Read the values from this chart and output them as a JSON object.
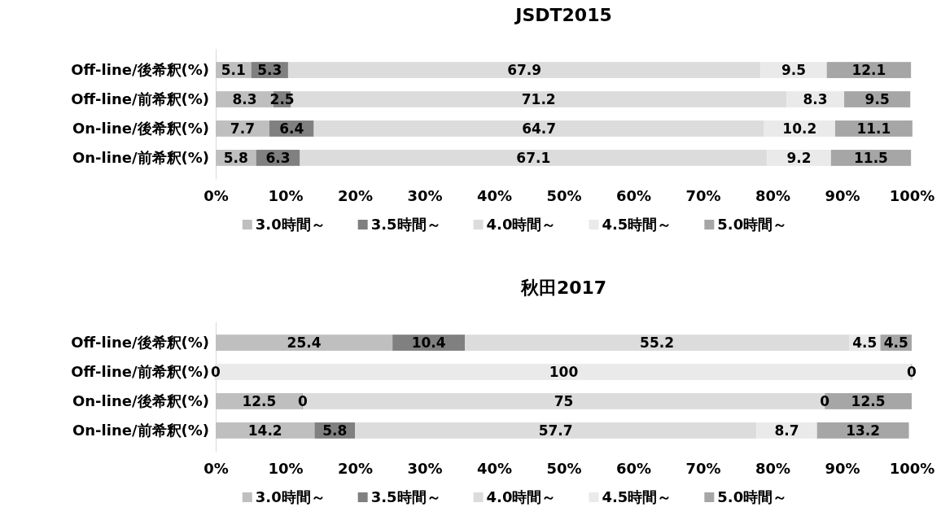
{
  "chart_data": [
    {
      "type": "bar",
      "title": "JSDT2015",
      "orientation": "horizontal",
      "stacked": true,
      "data_labels": true,
      "legend": "bottom",
      "grid": false,
      "categories": [
        "Off-line/後希釈(%)",
        "Off-line/前希釈(%)",
        "On-line/後希釈(%)",
        "On-line/前希釈(%)"
      ],
      "xlim": [
        0,
        100
      ],
      "xticks": [
        {
          "value": 0,
          "label": "0%"
        },
        {
          "value": 10,
          "label": "10%"
        },
        {
          "value": 20,
          "label": "20%"
        },
        {
          "value": 30,
          "label": "30%"
        },
        {
          "value": 40,
          "label": "40%"
        },
        {
          "value": 50,
          "label": "50%"
        },
        {
          "value": 60,
          "label": "60%"
        },
        {
          "value": 70,
          "label": "70%"
        },
        {
          "value": 80,
          "label": "80%"
        },
        {
          "value": 90,
          "label": "90%"
        },
        {
          "value": 100,
          "label": "100%"
        }
      ],
      "series": [
        {
          "name": "3.0時間～",
          "color": "#bfbfbf",
          "values": [
            5.1,
            8.3,
            7.7,
            5.8
          ]
        },
        {
          "name": "3.5時間～",
          "color": "#808080",
          "values": [
            5.3,
            2.5,
            6.4,
            6.3
          ]
        },
        {
          "name": "4.0時間～",
          "color": "#dcdcdc",
          "values": [
            67.9,
            71.2,
            64.7,
            67.1
          ]
        },
        {
          "name": "4.5時間～",
          "color": "#eaeaea",
          "values": [
            9.5,
            8.3,
            10.2,
            9.2
          ]
        },
        {
          "name": "5.0時間～",
          "color": "#a6a6a6",
          "values": [
            12.1,
            9.5,
            11.1,
            11.5
          ]
        }
      ]
    },
    {
      "type": "bar",
      "title": "秋田2017",
      "orientation": "horizontal",
      "stacked": true,
      "legend": "bottom",
      "grid": false,
      "categories": [
        "Off-line/後希釈(%)",
        "Off-line/前希釈(%)",
        "On-line/後希釈(%)",
        "On-line/前希釈(%)"
      ],
      "xlim": [
        0,
        100
      ],
      "xticks": [
        {
          "value": 0,
          "label": "0%"
        },
        {
          "value": 10,
          "label": "10%"
        },
        {
          "value": 20,
          "label": "20%"
        },
        {
          "value": 30,
          "label": "30%"
        },
        {
          "value": 40,
          "label": "40%"
        },
        {
          "value": 50,
          "label": "50%"
        },
        {
          "value": 60,
          "label": "60%"
        },
        {
          "value": 70,
          "label": "70%"
        },
        {
          "value": 80,
          "label": "80%"
        },
        {
          "value": 90,
          "label": "90%"
        },
        {
          "value": 100,
          "label": "100%"
        }
      ],
      "series": [
        {
          "name": "3.0時間～",
          "color": "#bfbfbf",
          "values": [
            25.4,
            0,
            12.5,
            14.2
          ],
          "value_labels": [
            "25.4",
            "0",
            "12.5",
            "14.2"
          ]
        },
        {
          "name": "3.5時間～",
          "color": "#808080",
          "values": [
            10.4,
            null,
            0,
            5.8
          ],
          "value_labels": [
            "10.4",
            null,
            "0",
            "5.8"
          ]
        },
        {
          "name": "4.0時間～",
          "color": "#dcdcdc",
          "values": [
            55.2,
            null,
            75,
            57.7
          ],
          "value_labels": [
            "55.2",
            null,
            "75",
            "57.7"
          ]
        },
        {
          "name": "4.5時間～",
          "color": "#eaeaea",
          "values": [
            4.5,
            100,
            0,
            8.7
          ],
          "value_labels": [
            "4.5",
            "100",
            "0",
            "8.7"
          ]
        },
        {
          "name": "5.0時間～",
          "color": "#a6a6a6",
          "values": [
            4.5,
            0,
            12.5,
            13.2
          ],
          "value_labels": [
            "4.5",
            "0",
            "12.5",
            "13.2"
          ]
        }
      ]
    }
  ]
}
